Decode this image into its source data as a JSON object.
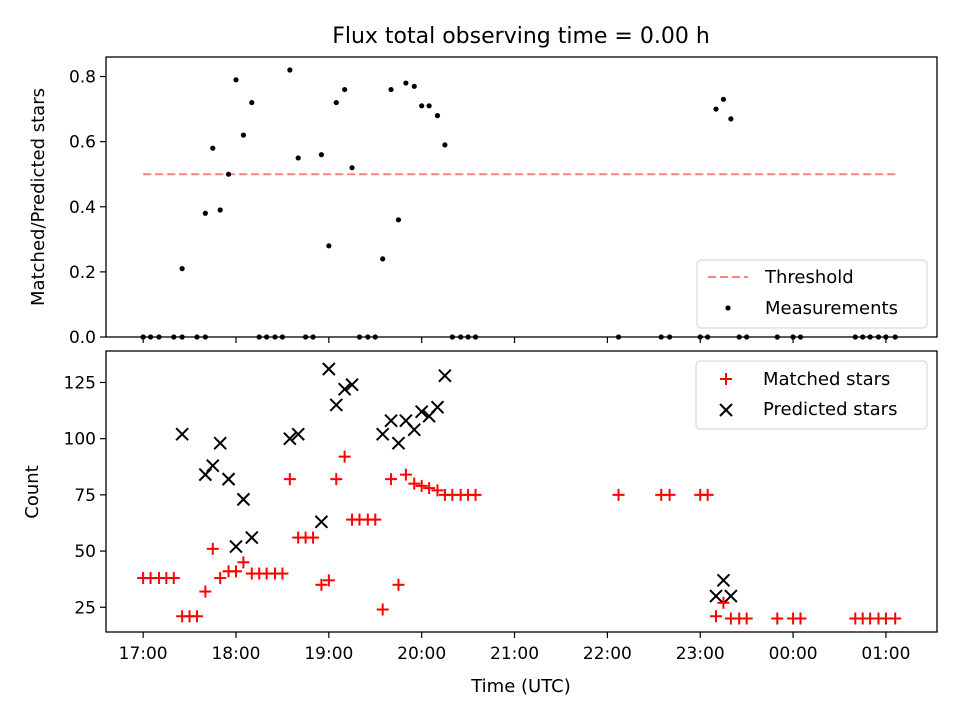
{
  "chart_data": [
    {
      "type": "scatter",
      "title": "Flux total observing time = 0.00 h",
      "xlabel": "",
      "ylabel": "Matched/Predicted stars",
      "xlim": [
        16.6,
        25.55
      ],
      "ylim": [
        0,
        0.86
      ],
      "yticks": [
        0.0,
        0.2,
        0.4,
        0.6,
        0.8
      ],
      "yticklabels": [
        "0.0",
        "0.2",
        "0.4",
        "0.6",
        "0.8"
      ],
      "grid": false,
      "legend_position": "lower-right",
      "threshold": {
        "name": "Threshold",
        "value": 0.5,
        "x_range": [
          17.0,
          25.1
        ],
        "color": "#ff8080"
      },
      "series": [
        {
          "name": "Measurements",
          "color": "#000000",
          "x": [
            17.0,
            17.08,
            17.17,
            17.33,
            17.42,
            17.42,
            17.58,
            17.67,
            17.67,
            17.75,
            17.83,
            17.92,
            18.0,
            18.08,
            18.17,
            18.25,
            18.33,
            18.42,
            18.5,
            18.58,
            18.67,
            18.75,
            18.83,
            18.92,
            19.0,
            19.08,
            19.17,
            19.25,
            19.33,
            19.42,
            19.5,
            19.58,
            19.67,
            19.75,
            19.83,
            19.92,
            20.0,
            20.08,
            20.17,
            20.25,
            20.33,
            20.42,
            20.5,
            20.58,
            22.12,
            22.58,
            22.67,
            23.0,
            23.08,
            23.17,
            23.25,
            23.33,
            23.42,
            23.5,
            23.83,
            24.0,
            24.08,
            24.67,
            24.75,
            24.83,
            24.92,
            25.0,
            25.1
          ],
          "y": [
            0,
            0,
            0,
            0,
            0.21,
            0,
            0,
            0,
            0.38,
            0.58,
            0.39,
            0.5,
            0.79,
            0.62,
            0.72,
            0,
            0,
            0,
            0,
            0.82,
            0.55,
            0,
            0,
            0.56,
            0.28,
            0.72,
            0.76,
            0.52,
            0,
            0,
            0,
            0.24,
            0.76,
            0.36,
            0.78,
            0.77,
            0.71,
            0.71,
            0.68,
            0.59,
            0,
            0,
            0,
            0,
            0,
            0,
            0,
            0,
            0,
            0.7,
            0.73,
            0.67,
            0,
            0,
            0,
            0,
            0,
            0,
            0,
            0,
            0,
            0,
            0
          ]
        }
      ]
    },
    {
      "type": "scatter",
      "title": "",
      "xlabel": "Time (UTC)",
      "ylabel": "Count",
      "xlim": [
        16.6,
        25.55
      ],
      "ylim": [
        14,
        139
      ],
      "xticks": [
        17,
        18,
        19,
        20,
        21,
        22,
        23,
        24,
        25
      ],
      "xticklabels": [
        "17:00",
        "18:00",
        "19:00",
        "20:00",
        "21:00",
        "22:00",
        "23:00",
        "00:00",
        "01:00"
      ],
      "yticks": [
        25,
        50,
        75,
        100,
        125
      ],
      "yticklabels": [
        "25",
        "50",
        "75",
        "100",
        "125"
      ],
      "grid": false,
      "legend_position": "upper-right",
      "series": [
        {
          "name": "Matched stars",
          "marker": "+",
          "color": "#ff0000",
          "x": [
            17.0,
            17.08,
            17.17,
            17.25,
            17.33,
            17.42,
            17.5,
            17.58,
            17.67,
            17.75,
            17.83,
            17.92,
            18.0,
            18.08,
            18.17,
            18.25,
            18.33,
            18.42,
            18.5,
            18.58,
            18.67,
            18.75,
            18.83,
            18.92,
            19.0,
            19.08,
            19.17,
            19.25,
            19.33,
            19.42,
            19.5,
            19.58,
            19.67,
            19.75,
            19.83,
            19.92,
            20.0,
            20.08,
            20.17,
            20.25,
            20.33,
            20.42,
            20.5,
            20.58,
            22.12,
            22.58,
            22.67,
            23.0,
            23.08,
            23.17,
            23.25,
            23.33,
            23.42,
            23.5,
            23.83,
            24.0,
            24.08,
            24.67,
            24.75,
            24.83,
            24.92,
            25.0,
            25.1
          ],
          "y": [
            38,
            38,
            38,
            38,
            38,
            21,
            21,
            21,
            32,
            51,
            38,
            41,
            41,
            45,
            40,
            40,
            40,
            40,
            40,
            82,
            56,
            56,
            56,
            35,
            37,
            82,
            92,
            64,
            64,
            64,
            64,
            24,
            82,
            35,
            84,
            80,
            79,
            78,
            77,
            75,
            75,
            75,
            75,
            75,
            75,
            75,
            75,
            75,
            75,
            21,
            27,
            20,
            20,
            20,
            20,
            20,
            20,
            20,
            20,
            20,
            20,
            20,
            20
          ]
        },
        {
          "name": "Predicted stars",
          "marker": "x",
          "color": "#000000",
          "x": [
            17.42,
            17.67,
            17.75,
            17.83,
            17.92,
            18.0,
            18.08,
            18.17,
            18.58,
            18.67,
            18.92,
            19.0,
            19.08,
            19.17,
            19.25,
            19.58,
            19.67,
            19.75,
            19.83,
            19.92,
            20.0,
            20.08,
            20.17,
            20.25,
            23.17,
            23.25,
            23.33
          ],
          "y": [
            102,
            84,
            88,
            98,
            82,
            52,
            73,
            56,
            100,
            102,
            63,
            131,
            115,
            122,
            124,
            102,
            108,
            98,
            108,
            104,
            112,
            110,
            114,
            128,
            30,
            37,
            30
          ]
        }
      ]
    }
  ]
}
